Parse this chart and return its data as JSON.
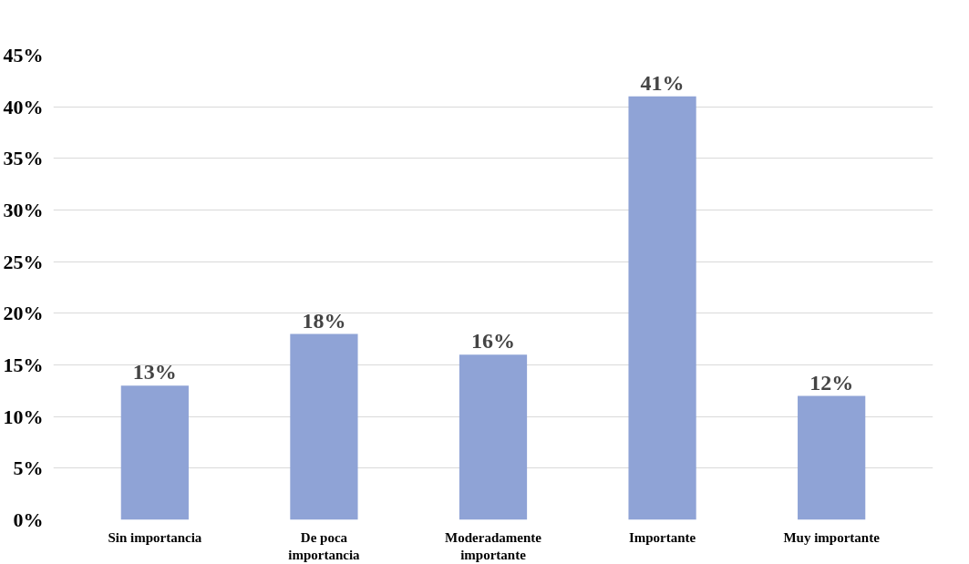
{
  "chart_data": {
    "type": "bar",
    "categories": [
      "Sin importancia",
      "De poca\nimportancia",
      "Moderadamente\nimportante",
      "Importante",
      "Muy importante"
    ],
    "values": [
      13,
      18,
      16,
      41,
      12
    ],
    "value_labels": [
      "13%",
      "18%",
      "16%",
      "41%",
      "12%"
    ],
    "color": "#8fa3d6",
    "ylim": [
      0,
      45
    ],
    "yticks": [
      {
        "value": 0,
        "label": "0%"
      },
      {
        "value": 5,
        "label": "5%"
      },
      {
        "value": 10,
        "label": "10%"
      },
      {
        "value": 15,
        "label": "15%"
      },
      {
        "value": 20,
        "label": "20%"
      },
      {
        "value": 25,
        "label": "25%"
      },
      {
        "value": 30,
        "label": "30%"
      },
      {
        "value": 35,
        "label": "35%"
      },
      {
        "value": 40,
        "label": "40%"
      },
      {
        "value": 45,
        "label": "45%"
      }
    ],
    "grid": "y"
  }
}
